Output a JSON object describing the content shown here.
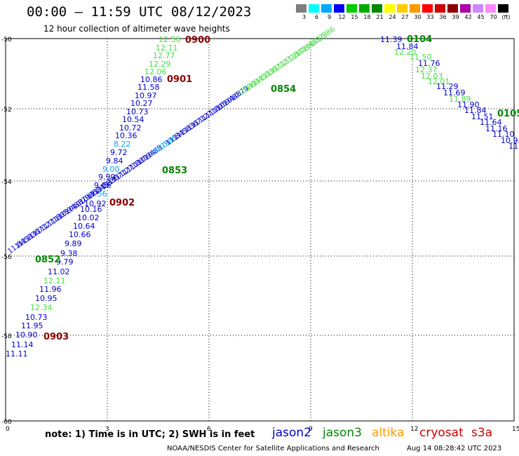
{
  "title": "00:00 — 11:59 UTC 08/12/2023",
  "subtitle": "12 hour collection of altimeter wave heights",
  "color_scale": {
    "labels": [
      "3",
      "6",
      "9",
      "12",
      "15",
      "18",
      "21",
      "24",
      "27",
      "30",
      "33",
      "36",
      "39",
      "42",
      "45",
      "70",
      "(ft)"
    ],
    "colors": [
      "#7f7f7f",
      "#00ffff",
      "#00aaff",
      "#0000ff",
      "#00cc00",
      "#00aa00",
      "#008800",
      "#ffff00",
      "#ffcc00",
      "#ff9900",
      "#ff0000",
      "#cc0000",
      "#8b0000",
      "#aa00aa",
      "#cc88ff",
      "#ff88ff",
      "#000000"
    ]
  },
  "axes": {
    "x_ticks": [
      "0",
      "3",
      "6",
      "9",
      "12",
      "15"
    ],
    "y_ticks": [
      "-50",
      "-52",
      "-54",
      "-56",
      "-58",
      "-60"
    ]
  },
  "note": "note: 1) Time is in UTC; 2) SWH is in feet",
  "satellites": [
    {
      "name": "jason2",
      "color": "#0000cc"
    },
    {
      "name": "jason3",
      "color": "#008800"
    },
    {
      "name": "altika",
      "color": "#ff9900"
    },
    {
      "name": "cryosat",
      "color": "#cc0000"
    },
    {
      "name": "s3a",
      "color": "#cc0000"
    }
  ],
  "credit": "NOAA/NESDIS Center for Satellite Applications and Research",
  "timestamp": "Aug 14 08:28:42 UTC 2023",
  "pass_labels": [
    "0900",
    "0901",
    "0902",
    "0903",
    "0852",
    "0853",
    "0854",
    "0104",
    "0105"
  ],
  "tracks": {
    "track_a": {
      "values": [
        "12.56",
        "12.11",
        "12.77",
        "12.29",
        "12.06",
        "10.86",
        "11.58",
        "10.97",
        "10.27",
        "10.73",
        "10.54",
        "10.72",
        "10.36",
        "8.22",
        "9.72",
        "9.84",
        "9.00",
        "9.99",
        "9.06",
        "8.56",
        "10.92",
        "10.16",
        "10.02",
        "10.64",
        "10.66",
        "9.89",
        "9.38",
        "9.79",
        "11.02",
        "12.11",
        "11.96",
        "10.95",
        "12.34",
        "10.73",
        "11.95",
        "10.90",
        "11.14",
        "11.11"
      ],
      "colors": [
        "#44dd44",
        "#44dd44",
        "#44dd44",
        "#44dd44",
        "#44dd44",
        "#0000cc",
        "#0000cc",
        "#0000cc",
        "#0000cc",
        "#0000cc",
        "#0000cc",
        "#0000cc",
        "#0000cc",
        "#00aaff",
        "#0000cc",
        "#0000cc",
        "#00aaff",
        "#0000cc",
        "#0000cc",
        "#00aaff",
        "#0000cc",
        "#0000cc",
        "#0000cc",
        "#0000cc",
        "#0000cc",
        "#0000cc",
        "#0000cc",
        "#0000cc",
        "#0000cc",
        "#44dd44",
        "#0000cc",
        "#0000cc",
        "#44dd44",
        "#0000cc",
        "#0000cc",
        "#0000cc",
        "#0000cc",
        "#0000cc"
      ]
    },
    "track_b": {
      "values": [
        "11.84",
        "11.58",
        "11.36",
        "11.71",
        "11.27",
        "11.18",
        "11.05",
        "10.94",
        "10.88",
        "10.79",
        "10.86"
      ]
    },
    "track_c": {
      "values": [
        "11.39",
        "11.84",
        "12.20",
        "11.50",
        "11.76",
        "12.37",
        "12.03",
        "12.01",
        "11.29",
        "11.69",
        "11.89",
        "11.90",
        "11.84",
        "11.51",
        "11.64",
        "11.16",
        "11.10",
        "10.93",
        "11.0"
      ],
      "colors": [
        "#0000cc",
        "#0000cc",
        "#44dd44",
        "#44dd44",
        "#0000cc",
        "#44dd44",
        "#44dd44",
        "#44dd44",
        "#0000cc",
        "#0000cc",
        "#44dd44",
        "#0000cc",
        "#0000cc",
        "#0000cc",
        "#0000cc",
        "#0000cc",
        "#0000cc",
        "#0000cc",
        "#0000cc"
      ]
    }
  }
}
